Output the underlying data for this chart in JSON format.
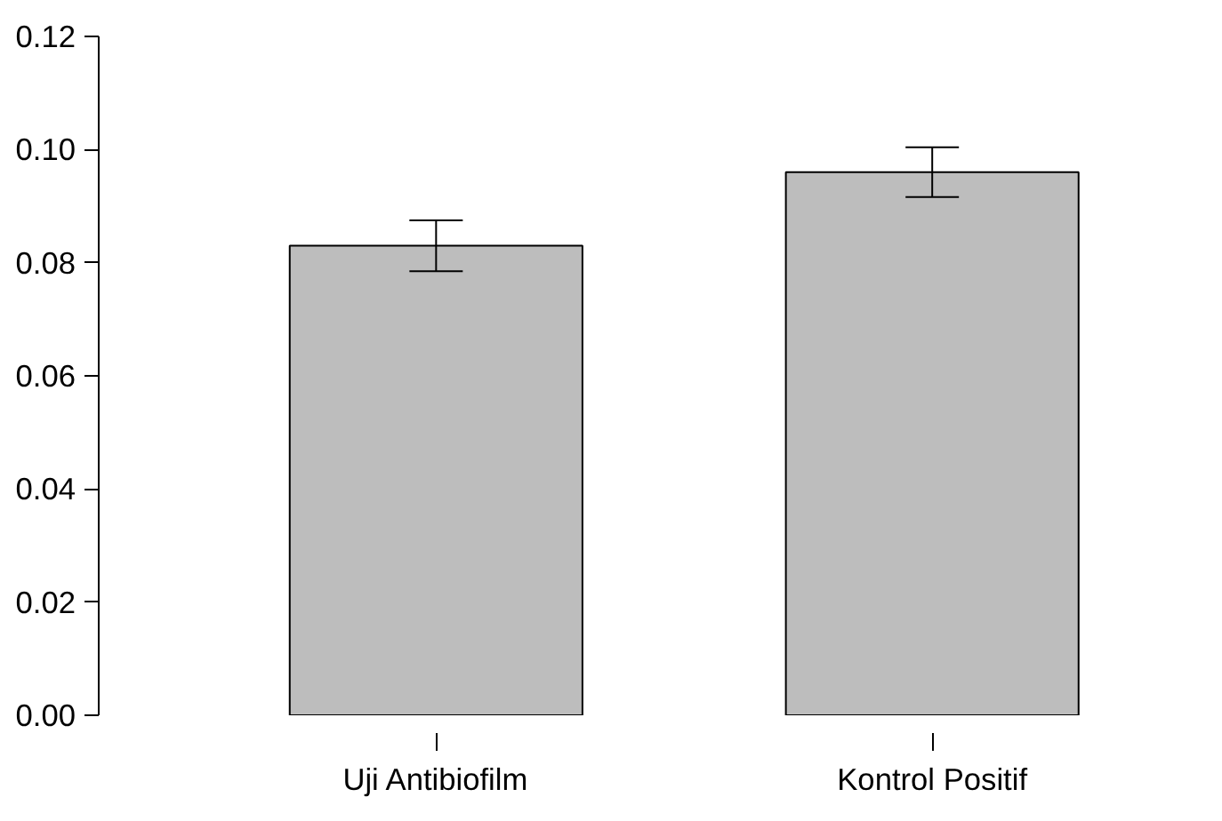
{
  "chart_data": {
    "type": "bar",
    "categories": [
      "Uji Antibiofilm",
      "Kontrol Positif"
    ],
    "values": [
      0.083,
      0.096
    ],
    "errors": [
      0.0045,
      0.0044
    ],
    "color": "#bdbdbd",
    "ylim": [
      0,
      0.12
    ],
    "yticks": [
      {
        "value": 0,
        "label": "0.00"
      },
      {
        "value": 0.02,
        "label": "0.02"
      },
      {
        "value": 0.04,
        "label": "0.04"
      },
      {
        "value": 0.06,
        "label": "0.06"
      },
      {
        "value": 0.08,
        "label": "0.08"
      },
      {
        "value": 0.1,
        "label": "0.10"
      },
      {
        "value": 0.12,
        "label": "0.12"
      }
    ],
    "grid": false
  }
}
